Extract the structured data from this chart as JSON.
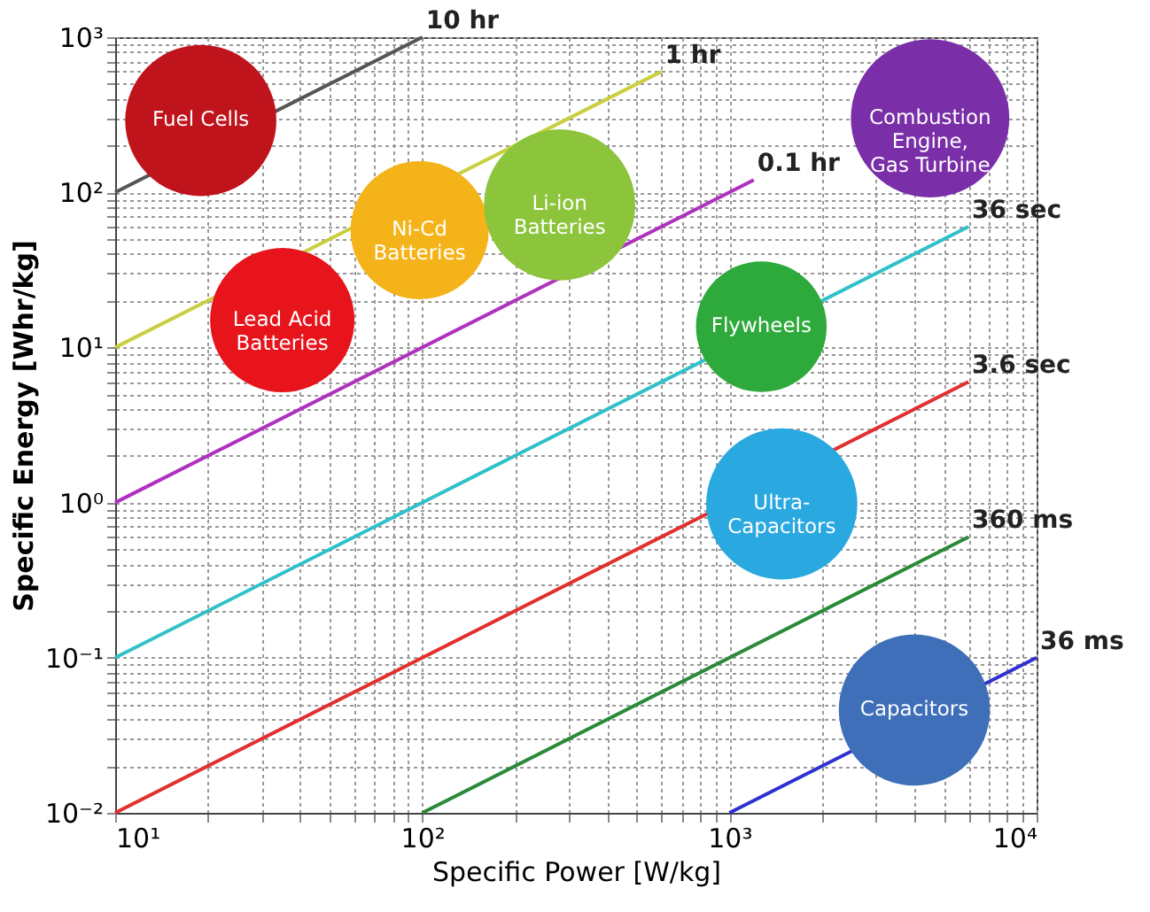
{
  "chart_data": {
    "type": "line",
    "xlabel": "Specific Power [W/kg]",
    "ylabel": "Specific Energy [Whr/kg]",
    "log": "xy",
    "grid": true,
    "xlim": [
      10,
      10000
    ],
    "ylim": [
      0.01,
      1000
    ],
    "xticks": [
      {
        "value": 10,
        "label": "10¹"
      },
      {
        "value": 20,
        "label": null
      },
      {
        "value": 30,
        "label": null
      },
      {
        "value": 40,
        "label": null
      },
      {
        "value": 50,
        "label": null
      },
      {
        "value": 60,
        "label": null
      },
      {
        "value": 70,
        "label": null
      },
      {
        "value": 80,
        "label": null
      },
      {
        "value": 90,
        "label": null
      },
      {
        "value": 100,
        "label": "10²"
      },
      {
        "value": 200,
        "label": null
      },
      {
        "value": 300,
        "label": null
      },
      {
        "value": 400,
        "label": null
      },
      {
        "value": 500,
        "label": null
      },
      {
        "value": 600,
        "label": null
      },
      {
        "value": 700,
        "label": null
      },
      {
        "value": 800,
        "label": null
      },
      {
        "value": 900,
        "label": null
      },
      {
        "value": 1000,
        "label": "10³"
      },
      {
        "value": 2000,
        "label": null
      },
      {
        "value": 3000,
        "label": null
      },
      {
        "value": 4000,
        "label": null
      },
      {
        "value": 5000,
        "label": null
      },
      {
        "value": 6000,
        "label": null
      },
      {
        "value": 7000,
        "label": null
      },
      {
        "value": 8000,
        "label": null
      },
      {
        "value": 9000,
        "label": null
      },
      {
        "value": 10000,
        "label": "10⁴"
      }
    ],
    "yticks": [
      {
        "value": 0.01,
        "label": "10⁻²"
      },
      {
        "value": 0.02,
        "label": null
      },
      {
        "value": 0.03,
        "label": null
      },
      {
        "value": 0.04,
        "label": null
      },
      {
        "value": 0.05,
        "label": null
      },
      {
        "value": 0.06,
        "label": null
      },
      {
        "value": 0.07,
        "label": null
      },
      {
        "value": 0.08,
        "label": null
      },
      {
        "value": 0.09,
        "label": null
      },
      {
        "value": 0.1,
        "label": "10⁻¹"
      },
      {
        "value": 0.2,
        "label": null
      },
      {
        "value": 0.3,
        "label": null
      },
      {
        "value": 0.4,
        "label": null
      },
      {
        "value": 0.5,
        "label": null
      },
      {
        "value": 0.6,
        "label": null
      },
      {
        "value": 0.7,
        "label": null
      },
      {
        "value": 0.8,
        "label": null
      },
      {
        "value": 0.9,
        "label": null
      },
      {
        "value": 1,
        "label": "10⁰"
      },
      {
        "value": 2,
        "label": null
      },
      {
        "value": 3,
        "label": null
      },
      {
        "value": 4,
        "label": null
      },
      {
        "value": 5,
        "label": null
      },
      {
        "value": 6,
        "label": null
      },
      {
        "value": 7,
        "label": null
      },
      {
        "value": 8,
        "label": null
      },
      {
        "value": 9,
        "label": null
      },
      {
        "value": 10,
        "label": "10¹"
      },
      {
        "value": 20,
        "label": null
      },
      {
        "value": 30,
        "label": null
      },
      {
        "value": 40,
        "label": null
      },
      {
        "value": 50,
        "label": null
      },
      {
        "value": 60,
        "label": null
      },
      {
        "value": 70,
        "label": null
      },
      {
        "value": 80,
        "label": null
      },
      {
        "value": 90,
        "label": null
      },
      {
        "value": 100,
        "label": "10²"
      },
      {
        "value": 200,
        "label": null
      },
      {
        "value": 300,
        "label": null
      },
      {
        "value": 400,
        "label": null
      },
      {
        "value": 500,
        "label": null
      },
      {
        "value": 600,
        "label": null
      },
      {
        "value": 700,
        "label": null
      },
      {
        "value": 800,
        "label": null
      },
      {
        "value": 900,
        "label": null
      },
      {
        "value": 1000,
        "label": "10³"
      }
    ],
    "series": [
      {
        "name": "10 hr",
        "color": "#555555",
        "x": [
          10,
          100
        ],
        "values": [
          100,
          1000
        ]
      },
      {
        "name": "1 hr",
        "color": "#c8d040",
        "x": [
          10,
          600
        ],
        "values": [
          10,
          600
        ]
      },
      {
        "name": "0.1 hr",
        "color": "#b030c0",
        "x": [
          10,
          1200
        ],
        "values": [
          1,
          120
        ]
      },
      {
        "name": "36 sec",
        "color": "#30c0c8",
        "x": [
          10,
          6000
        ],
        "values": [
          0.1,
          60
        ]
      },
      {
        "name": "3.6 sec",
        "color": "#e03030",
        "x": [
          10,
          6000
        ],
        "values": [
          0.01,
          6
        ]
      },
      {
        "name": "360 ms",
        "color": "#2a8a3a",
        "x": [
          100,
          6000
        ],
        "values": [
          0.01,
          0.6
        ]
      },
      {
        "name": "36 ms",
        "color": "#3030d0",
        "x": [
          1000,
          10000
        ],
        "values": [
          0.01,
          0.1
        ]
      },
      {
        "type": "bubble",
        "name": "Fuel Cells",
        "color": "#c0141c",
        "x": [
          19
        ],
        "values": [
          290
        ],
        "sizes": [
          0.91
        ]
      },
      {
        "type": "bubble",
        "name": "Lead Acid\nBatteries",
        "color": "#e8141c",
        "x": [
          35
        ],
        "values": [
          15
        ],
        "sizes": [
          0.83
        ]
      },
      {
        "type": "bubble",
        "name": "Ni-Cd\nBatteries",
        "color": "#f5b31a",
        "x": [
          98
        ],
        "values": [
          57
        ],
        "sizes": [
          0.76
        ]
      },
      {
        "type": "bubble",
        "name": "Li-ion\nBatteries",
        "color": "#8cc43c",
        "x": [
          280
        ],
        "values": [
          83
        ],
        "sizes": [
          0.91
        ]
      },
      {
        "type": "bubble",
        "name": "Combustion\nEngine,\nGas Turbine",
        "color": "#7a2fa8",
        "x": [
          4500
        ],
        "values": [
          300
        ],
        "sizes": [
          1
        ]
      },
      {
        "type": "bubble",
        "name": "Flywheels",
        "color": "#2eaa3c",
        "x": [
          1270
        ],
        "values": [
          13.6
        ],
        "sizes": [
          0.68
        ]
      },
      {
        "type": "bubble",
        "name": "Ultra-\nCapacitors",
        "color": "#2aa8e0",
        "x": [
          1480
        ],
        "values": [
          0.98
        ],
        "sizes": [
          0.91
        ]
      },
      {
        "type": "bubble",
        "name": "Capacitors",
        "color": "#3f6fb8",
        "x": [
          4000
        ],
        "values": [
          0.046
        ],
        "sizes": [
          0.91
        ]
      }
    ]
  }
}
